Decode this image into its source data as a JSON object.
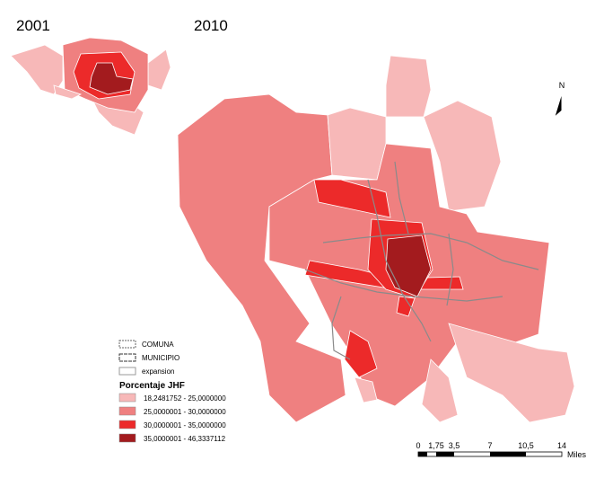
{
  "titles": {
    "left": "2001",
    "right": "2010"
  },
  "north": "N",
  "legend": {
    "boundaries": [
      "COMUNA",
      "MUNICIPIO",
      "expansion"
    ],
    "title": "Porcentaje JHF",
    "classes": [
      {
        "label": "18,2481752 - 25,0000000",
        "color": "#f7b8b8"
      },
      {
        "label": "25,0000001 - 30,0000000",
        "color": "#ef8080"
      },
      {
        "label": "30,0000001 - 35,0000000",
        "color": "#ec2a2a"
      },
      {
        "label": "35,0000001 - 46,3337112",
        "color": "#a31b1e"
      }
    ]
  },
  "scale": {
    "ticks": [
      "0",
      "1,75",
      "3,5",
      "7",
      "10,5",
      "14"
    ],
    "unit": "Miles"
  }
}
